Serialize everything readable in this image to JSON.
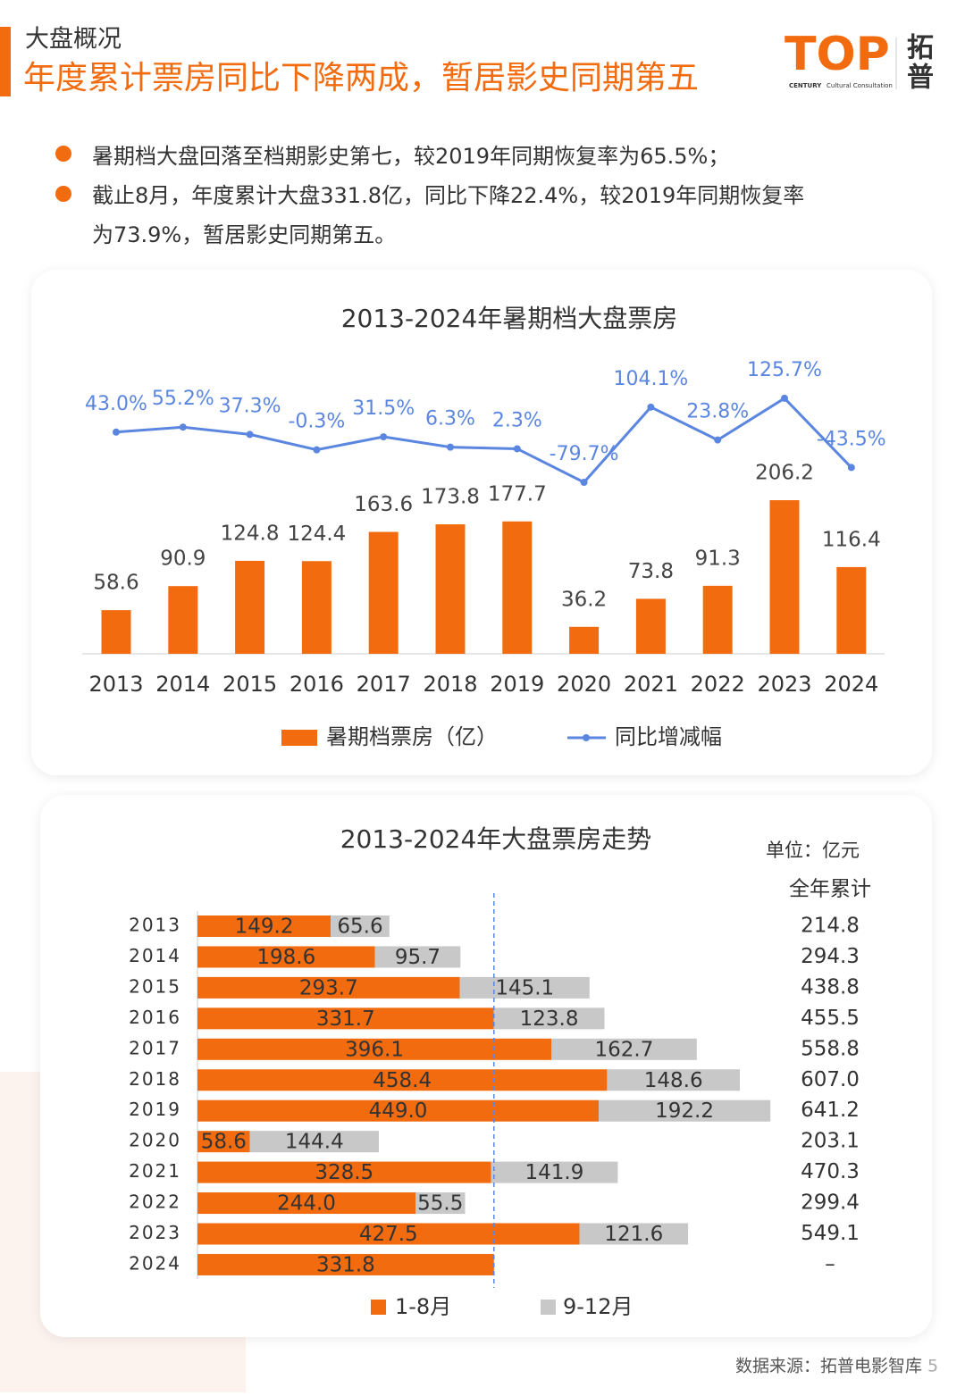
{
  "header": {
    "section": "大盘概况",
    "title": "年度累计票房同比下降两成，暂居影史同期第五",
    "logo": "TOP",
    "logo_cn": [
      "拓",
      "普"
    ],
    "logo_sub1": "CENTURY",
    "logo_sub2": "Cultural Consultation"
  },
  "bullets": [
    [
      "暑期档大盘回落至档期影史第七，较2019年同期恢复率为65.5%；"
    ],
    [
      "截止8月，年度累计大盘331.8亿，同比下降22.4%，较2019年同期恢复率",
      "为73.9%，暂居影史同期第五。"
    ]
  ],
  "chart_data": [
    {
      "type": "bar",
      "title": "2013-2024年暑期档大盘票房",
      "categories": [
        "2013",
        "2014",
        "2015",
        "2016",
        "2017",
        "2018",
        "2019",
        "2020",
        "2021",
        "2022",
        "2023",
        "2024"
      ],
      "ylim": [
        0,
        250
      ],
      "y2lim": [
        -100,
        150
      ],
      "series": [
        {
          "name": "暑期档票房（亿）",
          "type": "bar",
          "color": "#f26b0f",
          "values": [
            58.6,
            90.9,
            124.8,
            124.4,
            163.6,
            173.8,
            177.7,
            36.2,
            73.8,
            91.3,
            206.2,
            116.4
          ]
        },
        {
          "name": "同比增减幅",
          "type": "line",
          "axis": "y2",
          "color": "#5b86e0",
          "values": [
            43.0,
            55.2,
            37.3,
            -0.3,
            31.5,
            6.3,
            2.3,
            -79.7,
            104.1,
            23.8,
            125.7,
            -43.5
          ],
          "value_labels": [
            "43.0%",
            "55.2%",
            "37.3%",
            "-0.3%",
            "31.5%",
            "6.3%",
            "2.3%",
            "-79.7%",
            "104.1%",
            "23.8%",
            "125.7%",
            "-43.5%"
          ]
        }
      ]
    },
    {
      "type": "stackedbar",
      "title": "2013-2024年大盘票房走势",
      "unit": "单位：亿元",
      "categories": [
        "2013",
        "2014",
        "2015",
        "2016",
        "2017",
        "2018",
        "2019",
        "2020",
        "2021",
        "2022",
        "2023",
        "2024"
      ],
      "xlim": [
        0,
        700
      ],
      "series": [
        {
          "name": "1-8月",
          "color": "#f26b0f",
          "values": [
            149.2,
            198.6,
            293.7,
            331.7,
            396.1,
            458.4,
            449.0,
            58.6,
            328.5,
            244.0,
            427.5,
            331.8
          ],
          "value_labels": [
            "149.2",
            "198.6",
            "293.7",
            "331.7",
            "396.1",
            "458.4",
            "449.0",
            "58.6",
            "328.5",
            "244.0",
            "427.5",
            "331.8"
          ]
        },
        {
          "name": "9-12月",
          "color": "#c8c8c8",
          "values": [
            65.6,
            95.7,
            145.1,
            123.8,
            162.7,
            148.6,
            192.2,
            144.4,
            141.9,
            55.5,
            121.6,
            null
          ]
        }
      ],
      "totals": {
        "name": "全年累计",
        "values": [
          214.8,
          294.3,
          438.8,
          455.5,
          558.8,
          607.0,
          641.2,
          203.1,
          470.3,
          299.4,
          549.1,
          null
        ],
        "value_labels": [
          "214.8",
          "294.3",
          "438.8",
          "455.5",
          "558.8",
          "607.0",
          "641.2",
          "203.1",
          "470.3",
          "299.4",
          "549.1",
          "–"
        ]
      }
    }
  ],
  "footer": {
    "source": "数据来源：拓普电影智库",
    "page": 5
  }
}
